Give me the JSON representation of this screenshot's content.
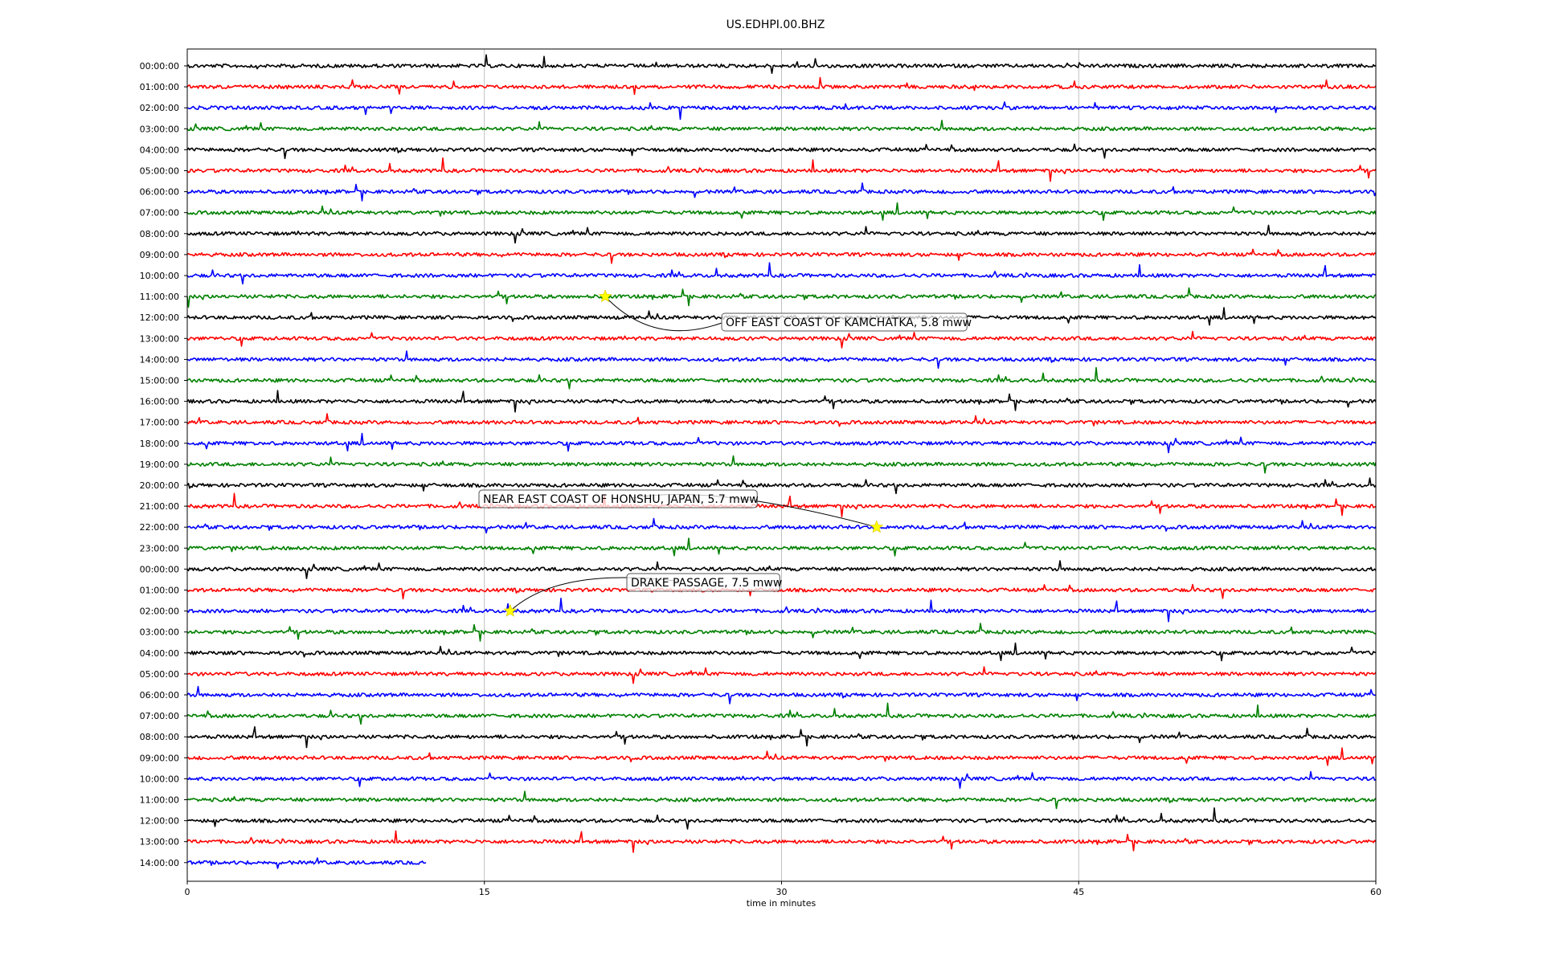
{
  "chart_data": {
    "type": "line",
    "title": "US.EDHPI.00.BHZ",
    "xlabel": "time in minutes",
    "ylabel": "",
    "xlim": [
      0,
      60
    ],
    "x_ticks": [
      "0",
      "15",
      "30",
      "45",
      "60"
    ],
    "x_tick_values": [
      0,
      15,
      30,
      45,
      60
    ],
    "grid_vertical": true,
    "trace_colors": [
      "#000000",
      "#ff0000",
      "#0000ff",
      "#008000"
    ],
    "rows": [
      "00:00:00",
      "01:00:00",
      "02:00:00",
      "03:00:00",
      "04:00:00",
      "05:00:00",
      "06:00:00",
      "07:00:00",
      "08:00:00",
      "09:00:00",
      "10:00:00",
      "11:00:00",
      "12:00:00",
      "13:00:00",
      "14:00:00",
      "15:00:00",
      "16:00:00",
      "17:00:00",
      "18:00:00",
      "19:00:00",
      "20:00:00",
      "21:00:00",
      "22:00:00",
      "23:00:00",
      "00:00:00",
      "01:00:00",
      "02:00:00",
      "03:00:00",
      "04:00:00",
      "05:00:00",
      "06:00:00",
      "07:00:00",
      "08:00:00",
      "09:00:00",
      "10:00:00",
      "11:00:00",
      "12:00:00",
      "13:00:00",
      "14:00:00"
    ],
    "last_row_end_minute": 12.1,
    "events": [
      {
        "row": 11,
        "minute": 21.1,
        "label": "OFF EAST COAST OF KAMCHATKA, 5.8 mww"
      },
      {
        "row": 22,
        "minute": 34.8,
        "label": "NEAR EAST COAST OF HONSHU, JAPAN, 5.7 mww"
      },
      {
        "row": 26,
        "minute": 16.3,
        "label": "DRAKE PASSAGE, 7.5 mww"
      }
    ],
    "marker_color": "#ffff00"
  }
}
